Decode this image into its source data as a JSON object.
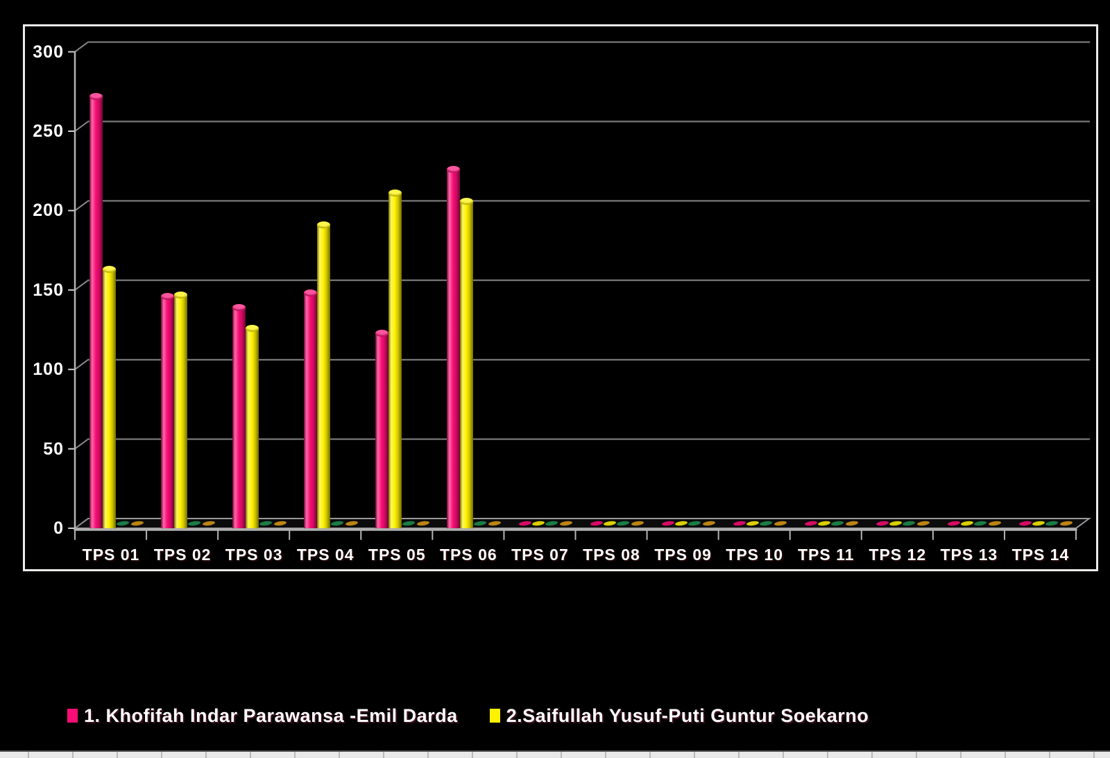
{
  "page": {
    "background": "#000000"
  },
  "chart_data": {
    "type": "bar",
    "subtype": "3d-cylinder-columns",
    "title": "",
    "xlabel": "",
    "ylabel": "",
    "categories": [
      "TPS 01",
      "TPS 02",
      "TPS 03",
      "TPS 04",
      "TPS 05",
      "TPS 06",
      "TPS 07",
      "TPS 08",
      "TPS 09",
      "TPS 10",
      "TPS 11",
      "TPS 12",
      "TPS 13",
      "TPS 14"
    ],
    "series": [
      {
        "name": "1. Khofifah Indar Parawansa -Emil Darda",
        "color": "#FA0D76",
        "values": [
          272,
          146,
          139,
          148,
          123,
          226,
          0,
          0,
          0,
          0,
          0,
          0,
          0,
          0
        ],
        "in_legend": true
      },
      {
        "name": "2.Saifullah Yusuf-Puti Guntur Soekarno",
        "color": "#FFF200",
        "values": [
          163,
          147,
          126,
          191,
          211,
          206,
          0,
          0,
          0,
          0,
          0,
          0,
          0,
          0
        ],
        "in_legend": true
      },
      {
        "name": "",
        "color": "#1E9150",
        "values": [
          0,
          0,
          0,
          0,
          0,
          0,
          0,
          0,
          0,
          0,
          0,
          0,
          0,
          0
        ],
        "in_legend": false
      },
      {
        "name": "",
        "color": "#DB9A16",
        "values": [
          0,
          0,
          0,
          0,
          0,
          0,
          0,
          0,
          0,
          0,
          0,
          0,
          0,
          0
        ],
        "in_legend": false
      }
    ],
    "ylim": [
      0,
      300
    ],
    "yticks": [
      0,
      50,
      100,
      150,
      200,
      250,
      300
    ],
    "grid": true,
    "plot_background": "#000000",
    "gridline_color": "#6e6e6e",
    "axis_text_color": "#ffffff",
    "legend_position": "bottom-left"
  }
}
